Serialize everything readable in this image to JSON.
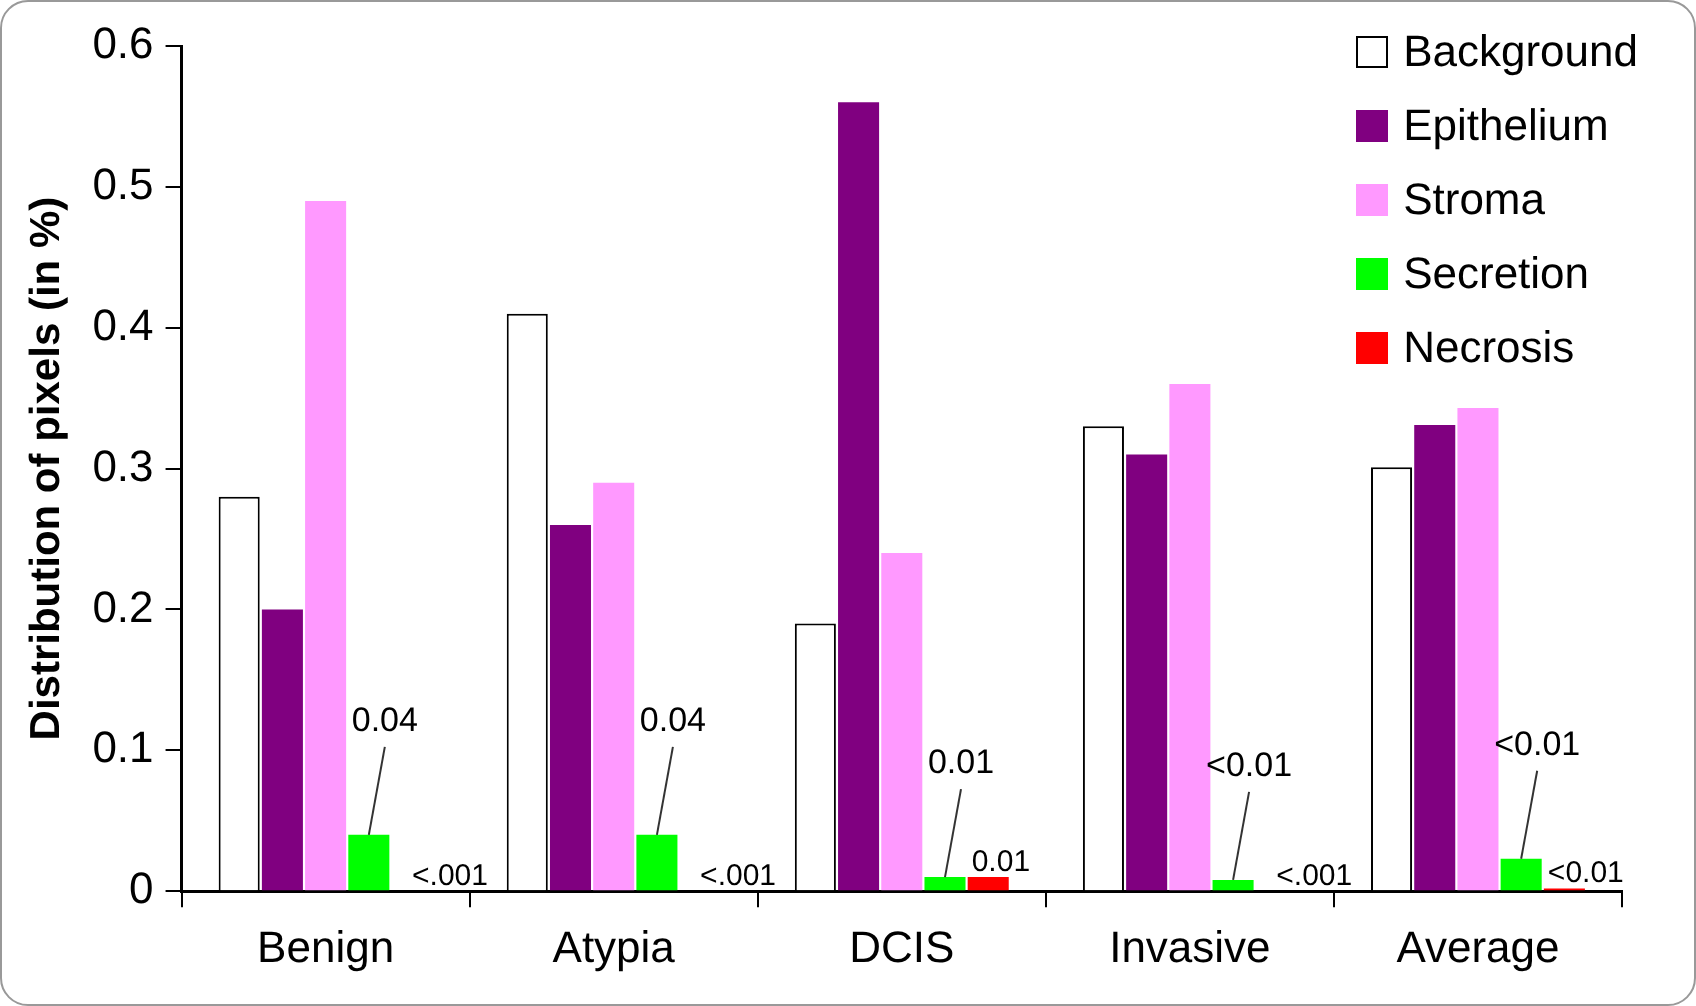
{
  "chart_data": {
    "type": "bar",
    "ylabel": "Distribution of pixels (in %)",
    "categories": [
      "Benign",
      "Atypia",
      "DCIS",
      "Invasive",
      "Average"
    ],
    "series": [
      {
        "name": "Background",
        "color": "#ffffff",
        "values": [
          0.28,
          0.41,
          0.19,
          0.33,
          0.301
        ]
      },
      {
        "name": "Epithelium",
        "color": "#800080",
        "values": [
          0.2,
          0.26,
          0.56,
          0.31,
          0.331
        ]
      },
      {
        "name": "Stroma",
        "color": "#ff99ff",
        "values": [
          0.49,
          0.29,
          0.24,
          0.36,
          0.343
        ]
      },
      {
        "name": "Secretion",
        "color": "#00ff00",
        "values": [
          0.04,
          0.04,
          0.01,
          0.008,
          0.023
        ],
        "value_labels": [
          "0.04",
          "0.04",
          "0.01",
          "<0.01",
          "<0.01"
        ]
      },
      {
        "name": "Necrosis",
        "color": "#ff0000",
        "values": [
          0,
          0,
          0.01,
          0,
          0.002
        ],
        "value_labels": [
          null,
          null,
          "0.01",
          null,
          "<0.01"
        ]
      }
    ],
    "annotations": [
      {
        "text": "<.001",
        "x": "Benign",
        "y": 0
      },
      {
        "text": "<.001",
        "x": "Atypia",
        "y": 0
      },
      {
        "text": "<.001",
        "x": "Invasive",
        "y": 0
      }
    ],
    "ylim": [
      0,
      0.6
    ],
    "yticks": [
      0,
      0.1,
      0.2,
      0.3,
      0.4,
      0.5,
      0.6
    ],
    "grid": false,
    "legend": "top right"
  }
}
